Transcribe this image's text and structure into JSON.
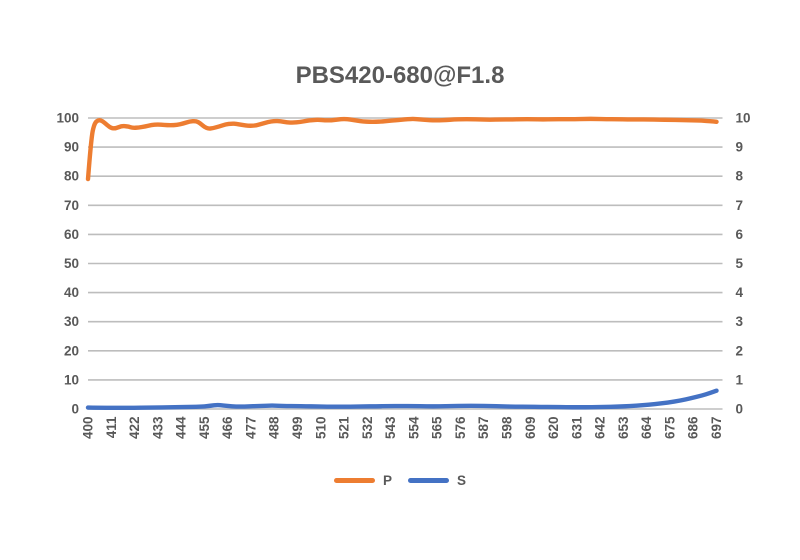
{
  "title": "PBS420-680@F1.8",
  "colors": {
    "p_series": "#ED7D31",
    "s_series": "#4472C4",
    "gridline": "#BDBDBD",
    "text": "#595959",
    "background": "#FFFFFF"
  },
  "legend": {
    "position": "bottom",
    "items": [
      {
        "label": "P",
        "color": "#ED7D31"
      },
      {
        "label": "S",
        "color": "#4472C4"
      }
    ]
  },
  "chart_data": {
    "type": "line",
    "title": "PBS420-680@F1.8",
    "xlabel": "",
    "ylabel_left": "",
    "ylabel_right": "",
    "grid": true,
    "legend_position": "bottom",
    "x_tick_labels": [
      400,
      411,
      422,
      433,
      444,
      455,
      466,
      477,
      488,
      499,
      510,
      521,
      532,
      543,
      554,
      565,
      576,
      587,
      598,
      609,
      620,
      631,
      642,
      653,
      664,
      675,
      686,
      697
    ],
    "left_axis": {
      "min": 0,
      "max": 100,
      "step": 10,
      "ticks": [
        0,
        10,
        20,
        30,
        40,
        50,
        60,
        70,
        80,
        90,
        100
      ]
    },
    "right_axis": {
      "min": 0,
      "max": 10,
      "step": 1,
      "ticks": [
        0,
        1,
        2,
        3,
        4,
        5,
        6,
        7,
        8,
        9,
        10
      ]
    },
    "series": [
      {
        "name": "P",
        "axis": "left",
        "color": "#ED7D31",
        "points": [
          [
            400,
            79
          ],
          [
            401.5,
            93
          ],
          [
            403,
            98.2
          ],
          [
            405,
            99.4
          ],
          [
            407,
            98.9
          ],
          [
            409,
            97.6
          ],
          [
            411,
            96.5
          ],
          [
            413,
            96.4
          ],
          [
            416,
            97.3
          ],
          [
            419,
            97.1
          ],
          [
            421,
            96.6
          ],
          [
            424,
            96.7
          ],
          [
            427,
            97.1
          ],
          [
            430,
            97.6
          ],
          [
            433,
            97.8
          ],
          [
            436,
            97.6
          ],
          [
            439,
            97.5
          ],
          [
            442,
            97.6
          ],
          [
            445,
            98.1
          ],
          [
            448,
            98.8
          ],
          [
            451,
            99.0
          ],
          [
            453,
            98.2
          ],
          [
            455,
            96.9
          ],
          [
            457,
            96.3
          ],
          [
            459,
            96.5
          ],
          [
            462,
            97.1
          ],
          [
            465,
            97.8
          ],
          [
            468,
            98.1
          ],
          [
            470,
            98.0
          ],
          [
            473,
            97.6
          ],
          [
            476,
            97.3
          ],
          [
            479,
            97.4
          ],
          [
            482,
            98.0
          ],
          [
            485,
            98.6
          ],
          [
            488,
            99.0
          ],
          [
            491,
            98.9
          ],
          [
            494,
            98.5
          ],
          [
            497,
            98.4
          ],
          [
            500,
            98.6
          ],
          [
            503,
            99.0
          ],
          [
            506,
            99.3
          ],
          [
            509,
            99.4
          ],
          [
            512,
            99.2
          ],
          [
            515,
            99.2
          ],
          [
            518,
            99.5
          ],
          [
            521,
            99.7
          ],
          [
            524,
            99.5
          ],
          [
            527,
            99.1
          ],
          [
            530,
            98.8
          ],
          [
            533,
            98.7
          ],
          [
            536,
            98.7
          ],
          [
            539,
            98.8
          ],
          [
            542,
            99.0
          ],
          [
            545,
            99.2
          ],
          [
            548,
            99.4
          ],
          [
            551,
            99.6
          ],
          [
            554,
            99.7
          ],
          [
            557,
            99.5
          ],
          [
            560,
            99.3
          ],
          [
            563,
            99.2
          ],
          [
            566,
            99.2
          ],
          [
            569,
            99.3
          ],
          [
            573,
            99.5
          ],
          [
            577,
            99.6
          ],
          [
            581,
            99.6
          ],
          [
            585,
            99.5
          ],
          [
            590,
            99.4
          ],
          [
            595,
            99.5
          ],
          [
            600,
            99.5
          ],
          [
            605,
            99.6
          ],
          [
            610,
            99.6
          ],
          [
            615,
            99.5
          ],
          [
            620,
            99.6
          ],
          [
            625,
            99.6
          ],
          [
            630,
            99.6
          ],
          [
            635,
            99.7
          ],
          [
            640,
            99.7
          ],
          [
            645,
            99.6
          ],
          [
            650,
            99.6
          ],
          [
            655,
            99.5
          ],
          [
            660,
            99.5
          ],
          [
            665,
            99.5
          ],
          [
            670,
            99.4
          ],
          [
            675,
            99.4
          ],
          [
            680,
            99.3
          ],
          [
            685,
            99.2
          ],
          [
            690,
            99.1
          ],
          [
            694,
            98.9
          ],
          [
            697,
            98.7
          ]
        ]
      },
      {
        "name": "S",
        "axis": "right",
        "color": "#4472C4",
        "points": [
          [
            400,
            0.05
          ],
          [
            410,
            0.04
          ],
          [
            420,
            0.04
          ],
          [
            430,
            0.05
          ],
          [
            440,
            0.06
          ],
          [
            448,
            0.07
          ],
          [
            454,
            0.08
          ],
          [
            458,
            0.11
          ],
          [
            461,
            0.14
          ],
          [
            464,
            0.12
          ],
          [
            468,
            0.09
          ],
          [
            472,
            0.08
          ],
          [
            476,
            0.09
          ],
          [
            480,
            0.1
          ],
          [
            484,
            0.11
          ],
          [
            487,
            0.12
          ],
          [
            490,
            0.11
          ],
          [
            494,
            0.1
          ],
          [
            498,
            0.1
          ],
          [
            503,
            0.09
          ],
          [
            508,
            0.09
          ],
          [
            513,
            0.08
          ],
          [
            518,
            0.08
          ],
          [
            524,
            0.08
          ],
          [
            530,
            0.09
          ],
          [
            536,
            0.09
          ],
          [
            542,
            0.1
          ],
          [
            548,
            0.1
          ],
          [
            554,
            0.1
          ],
          [
            560,
            0.09
          ],
          [
            566,
            0.09
          ],
          [
            572,
            0.1
          ],
          [
            578,
            0.11
          ],
          [
            584,
            0.11
          ],
          [
            590,
            0.1
          ],
          [
            596,
            0.09
          ],
          [
            602,
            0.08
          ],
          [
            608,
            0.08
          ],
          [
            614,
            0.07
          ],
          [
            620,
            0.07
          ],
          [
            626,
            0.06
          ],
          [
            632,
            0.06
          ],
          [
            638,
            0.06
          ],
          [
            644,
            0.07
          ],
          [
            650,
            0.08
          ],
          [
            656,
            0.1
          ],
          [
            662,
            0.13
          ],
          [
            668,
            0.17
          ],
          [
            674,
            0.22
          ],
          [
            680,
            0.29
          ],
          [
            685,
            0.37
          ],
          [
            690,
            0.46
          ],
          [
            694,
            0.55
          ],
          [
            697,
            0.63
          ]
        ]
      }
    ]
  }
}
